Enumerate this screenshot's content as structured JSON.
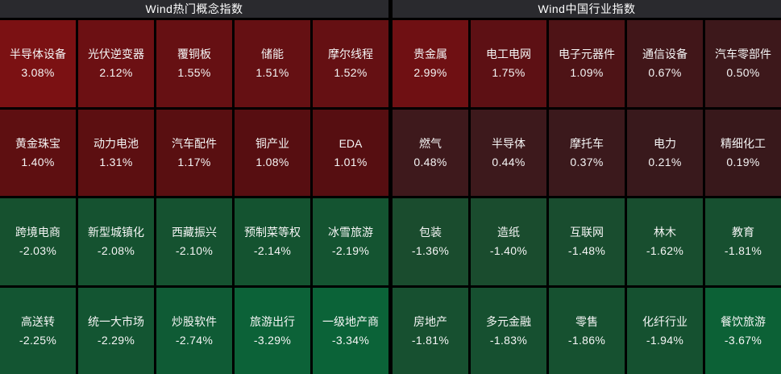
{
  "panels": [
    {
      "title": "Wind热门概念指数",
      "tiles": [
        {
          "name": "半导体设备",
          "pct": "3.08%",
          "color": "#7b1113"
        },
        {
          "name": "光伏逆变器",
          "pct": "2.12%",
          "color": "#6c1013"
        },
        {
          "name": "覆铜板",
          "pct": "1.55%",
          "color": "#661013"
        },
        {
          "name": "储能",
          "pct": "1.51%",
          "color": "#651013"
        },
        {
          "name": "摩尔线程",
          "pct": "1.52%",
          "color": "#651013"
        },
        {
          "name": "黄金珠宝",
          "pct": "1.40%",
          "color": "#5e0f11"
        },
        {
          "name": "动力电池",
          "pct": "1.31%",
          "color": "#5c0f11"
        },
        {
          "name": "汽车配件",
          "pct": "1.17%",
          "color": "#590f11"
        },
        {
          "name": "铜产业",
          "pct": "1.08%",
          "color": "#570e11"
        },
        {
          "name": "EDA",
          "pct": "1.01%",
          "color": "#560e11"
        },
        {
          "name": "跨境电商",
          "pct": "-2.03%",
          "color": "#16512f"
        },
        {
          "name": "新型城镇化",
          "pct": "-2.08%",
          "color": "#155230"
        },
        {
          "name": "西藏振兴",
          "pct": "-2.10%",
          "color": "#155230"
        },
        {
          "name": "预制菜等权",
          "pct": "-2.14%",
          "color": "#145330"
        },
        {
          "name": "冰雪旅游",
          "pct": "-2.19%",
          "color": "#145431"
        },
        {
          "name": "高送转",
          "pct": "-2.25%",
          "color": "#135532"
        },
        {
          "name": "统一大市场",
          "pct": "-2.29%",
          "color": "#135532"
        },
        {
          "name": "炒股软件",
          "pct": "-2.74%",
          "color": "#0f5b35"
        },
        {
          "name": "旅游出行",
          "pct": "-3.29%",
          "color": "#0c6238"
        },
        {
          "name": "一级地产商",
          "pct": "-3.34%",
          "color": "#0b6338"
        }
      ]
    },
    {
      "title": "Wind中国行业指数",
      "tiles": [
        {
          "name": "贵金属",
          "pct": "2.99%",
          "color": "#6f1013"
        },
        {
          "name": "电工电网",
          "pct": "1.75%",
          "color": "#5d1014"
        },
        {
          "name": "电子元器件",
          "pct": "1.09%",
          "color": "#4e1316"
        },
        {
          "name": "通信设备",
          "pct": "0.67%",
          "color": "#411619"
        },
        {
          "name": "汽车零部件",
          "pct": "0.50%",
          "color": "#3d181b"
        },
        {
          "name": "燃气",
          "pct": "0.48%",
          "color": "#3e191c"
        },
        {
          "name": "半导体",
          "pct": "0.44%",
          "color": "#3d191c"
        },
        {
          "name": "摩托车",
          "pct": "0.37%",
          "color": "#3b191c"
        },
        {
          "name": "电力",
          "pct": "0.21%",
          "color": "#39191c"
        },
        {
          "name": "精细化工",
          "pct": "0.19%",
          "color": "#38181b"
        },
        {
          "name": "包装",
          "pct": "-1.36%",
          "color": "#1a4c2e"
        },
        {
          "name": "造纸",
          "pct": "-1.40%",
          "color": "#1a4c2e"
        },
        {
          "name": "互联网",
          "pct": "-1.48%",
          "color": "#194d2f"
        },
        {
          "name": "林木",
          "pct": "-1.62%",
          "color": "#184e2f"
        },
        {
          "name": "教育",
          "pct": "-1.81%",
          "color": "#175030"
        },
        {
          "name": "房地产",
          "pct": "-1.81%",
          "color": "#175030"
        },
        {
          "name": "多元金融",
          "pct": "-1.83%",
          "color": "#165030"
        },
        {
          "name": "零售",
          "pct": "-1.86%",
          "color": "#165130"
        },
        {
          "name": "化纤行业",
          "pct": "-1.94%",
          "color": "#155130"
        },
        {
          "name": "餐饮旅游",
          "pct": "-3.67%",
          "color": "#0c6136"
        }
      ]
    }
  ],
  "palette": {
    "background": "#000000",
    "header_background": "#2a2a2e",
    "text": "#f5f5f5",
    "max_gain_red": "#7b1113",
    "max_loss_green": "#0b6338"
  },
  "chart_data": [
    {
      "type": "heatmap",
      "title": "Wind热门概念指数",
      "rows": 4,
      "cols": 5,
      "labels": [
        "半导体设备",
        "光伏逆变器",
        "覆铜板",
        "储能",
        "摩尔线程",
        "黄金珠宝",
        "动力电池",
        "汽车配件",
        "铜产业",
        "EDA",
        "跨境电商",
        "新型城镇化",
        "西藏振兴",
        "预制菜等权",
        "冰雪旅游",
        "高送转",
        "统一大市场",
        "炒股软件",
        "旅游出行",
        "一级地产商"
      ],
      "values": [
        3.08,
        2.12,
        1.55,
        1.51,
        1.52,
        1.4,
        1.31,
        1.17,
        1.08,
        1.01,
        -2.03,
        -2.08,
        -2.1,
        -2.14,
        -2.19,
        -2.25,
        -2.29,
        -2.74,
        -3.29,
        -3.34
      ],
      "unit": "%",
      "legend": "red = gain, green = loss; intensity scales with magnitude"
    },
    {
      "type": "heatmap",
      "title": "Wind中国行业指数",
      "rows": 4,
      "cols": 5,
      "labels": [
        "贵金属",
        "电工电网",
        "电子元器件",
        "通信设备",
        "汽车零部件",
        "燃气",
        "半导体",
        "摩托车",
        "电力",
        "精细化工",
        "包装",
        "造纸",
        "互联网",
        "林木",
        "教育",
        "房地产",
        "多元金融",
        "零售",
        "化纤行业",
        "餐饮旅游"
      ],
      "values": [
        2.99,
        1.75,
        1.09,
        0.67,
        0.5,
        0.48,
        0.44,
        0.37,
        0.21,
        0.19,
        -1.36,
        -1.4,
        -1.48,
        -1.62,
        -1.81,
        -1.81,
        -1.83,
        -1.86,
        -1.94,
        -3.67
      ],
      "unit": "%",
      "legend": "red = gain, green = loss; intensity scales with magnitude"
    }
  ]
}
